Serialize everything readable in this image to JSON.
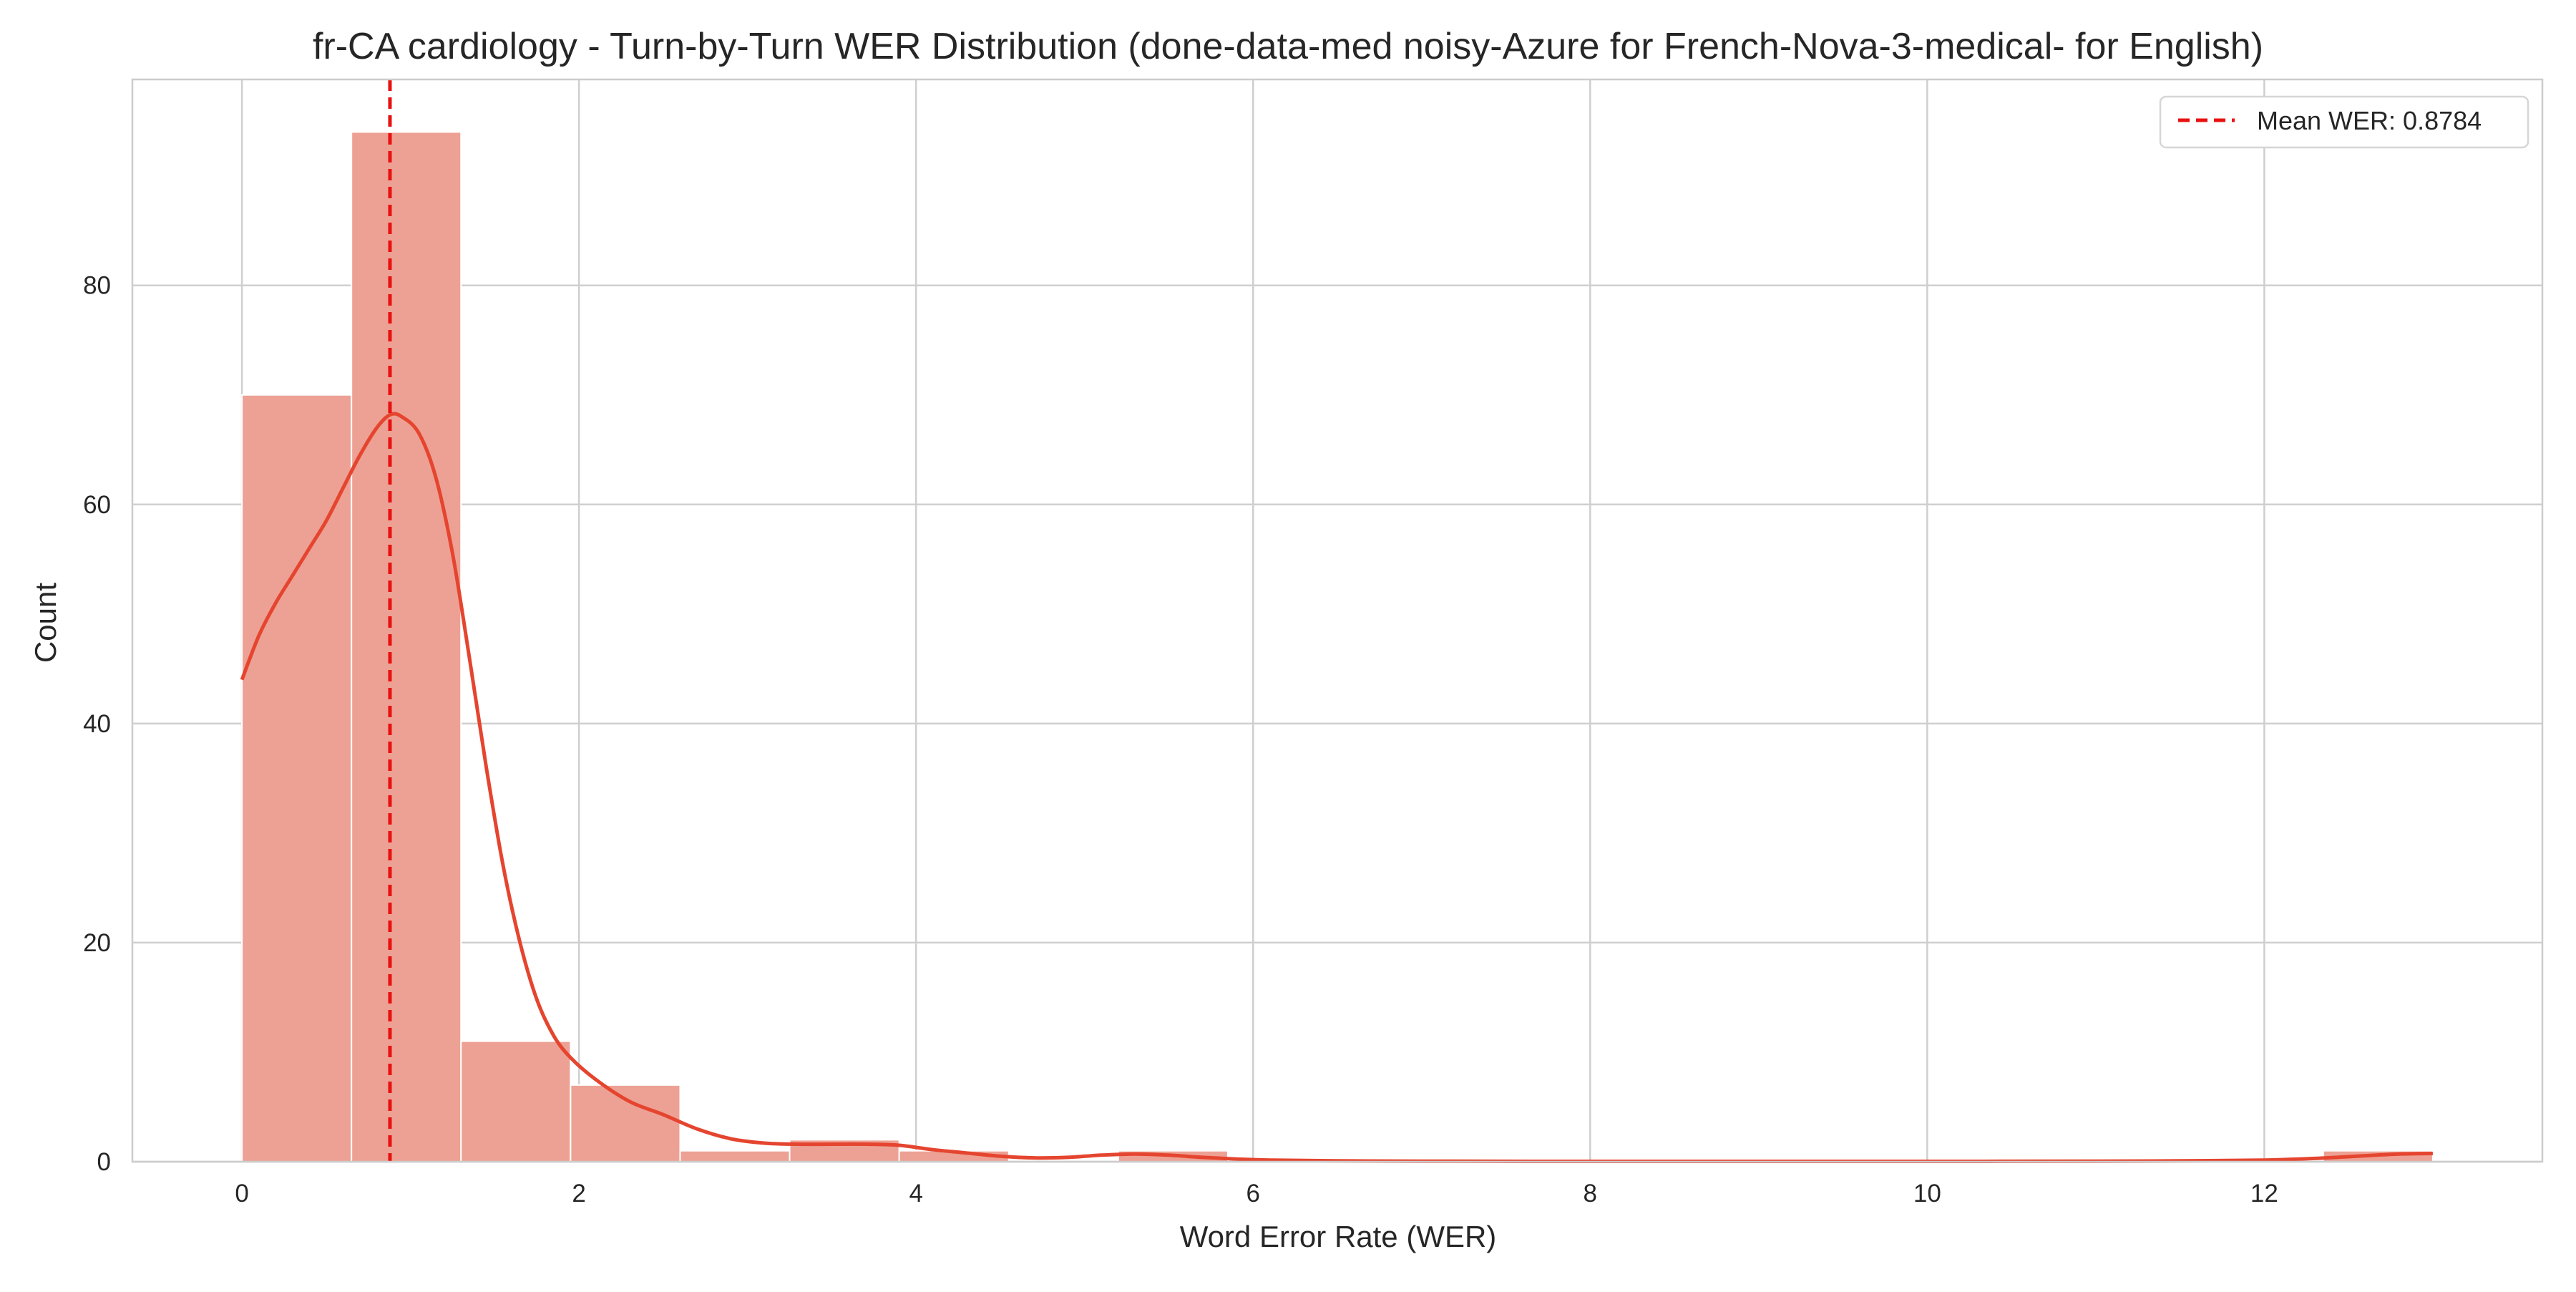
{
  "chart_data": {
    "type": "bar",
    "title": "fr-CA cardiology - Turn-by-Turn WER Distribution (done-data-med noisy-Azure for French-Nova-3-medical- for English)",
    "xlabel": "Word Error Rate (WER)",
    "ylabel": "Count",
    "xlim": [
      -0.65,
      13.65
    ],
    "ylim": [
      0,
      98.8
    ],
    "xticks": [
      0,
      2,
      4,
      6,
      8,
      10,
      12
    ],
    "yticks": [
      0,
      20,
      40,
      60,
      80
    ],
    "grid": true,
    "legend_position": "top-right",
    "bins": {
      "edges": [
        0,
        0.65,
        1.3,
        1.95,
        2.6,
        3.25,
        3.9,
        4.55,
        5.2,
        5.85,
        6.5,
        7.15,
        7.8,
        8.45,
        9.1,
        9.75,
        10.4,
        11.05,
        11.7,
        12.35,
        13.0
      ],
      "counts": [
        70,
        94,
        11,
        7,
        1,
        2,
        1,
        0,
        1,
        0,
        0,
        0,
        0,
        0,
        0,
        0,
        0,
        0,
        0,
        1
      ]
    },
    "kde": {
      "name": "KDE",
      "x": [
        0,
        0.1,
        0.2,
        0.3,
        0.4,
        0.5,
        0.6,
        0.7,
        0.8,
        0.88,
        0.95,
        1.05,
        1.15,
        1.25,
        1.35,
        1.45,
        1.55,
        1.65,
        1.75,
        1.85,
        1.95,
        2.1,
        2.3,
        2.5,
        2.7,
        2.9,
        3.1,
        3.3,
        3.5,
        3.7,
        3.9,
        4.1,
        4.3,
        4.5,
        4.7,
        4.9,
        5.1,
        5.3,
        5.5,
        5.7,
        5.9,
        6.1,
        6.5,
        7,
        8,
        9,
        10,
        11,
        11.5,
        12,
        12.3,
        12.6,
        12.8,
        13.0
      ],
      "y": [
        44,
        48,
        51,
        53.5,
        56,
        58.5,
        61.5,
        64.5,
        67,
        68.2,
        68,
        66.5,
        62.5,
        55.5,
        46,
        36,
        27,
        20,
        14.8,
        11.5,
        9.5,
        7.5,
        5.5,
        4.3,
        3.0,
        2.1,
        1.7,
        1.6,
        1.6,
        1.6,
        1.5,
        1.1,
        0.8,
        0.5,
        0.35,
        0.4,
        0.6,
        0.7,
        0.6,
        0.4,
        0.25,
        0.15,
        0.08,
        0.05,
        0.03,
        0.03,
        0.03,
        0.05,
        0.08,
        0.15,
        0.3,
        0.55,
        0.7,
        0.75
      ]
    },
    "mean_line": {
      "value": 0.8784,
      "label": "Mean WER: 0.8784"
    },
    "colors": {
      "bar_fill": "#eda194",
      "bar_edge": "#ffffff",
      "kde_line": "#e5452f",
      "mean_line": "#e8110f",
      "grid": "#cfcfcf",
      "axes_frame": "#cccccc",
      "text": "#262626"
    }
  }
}
